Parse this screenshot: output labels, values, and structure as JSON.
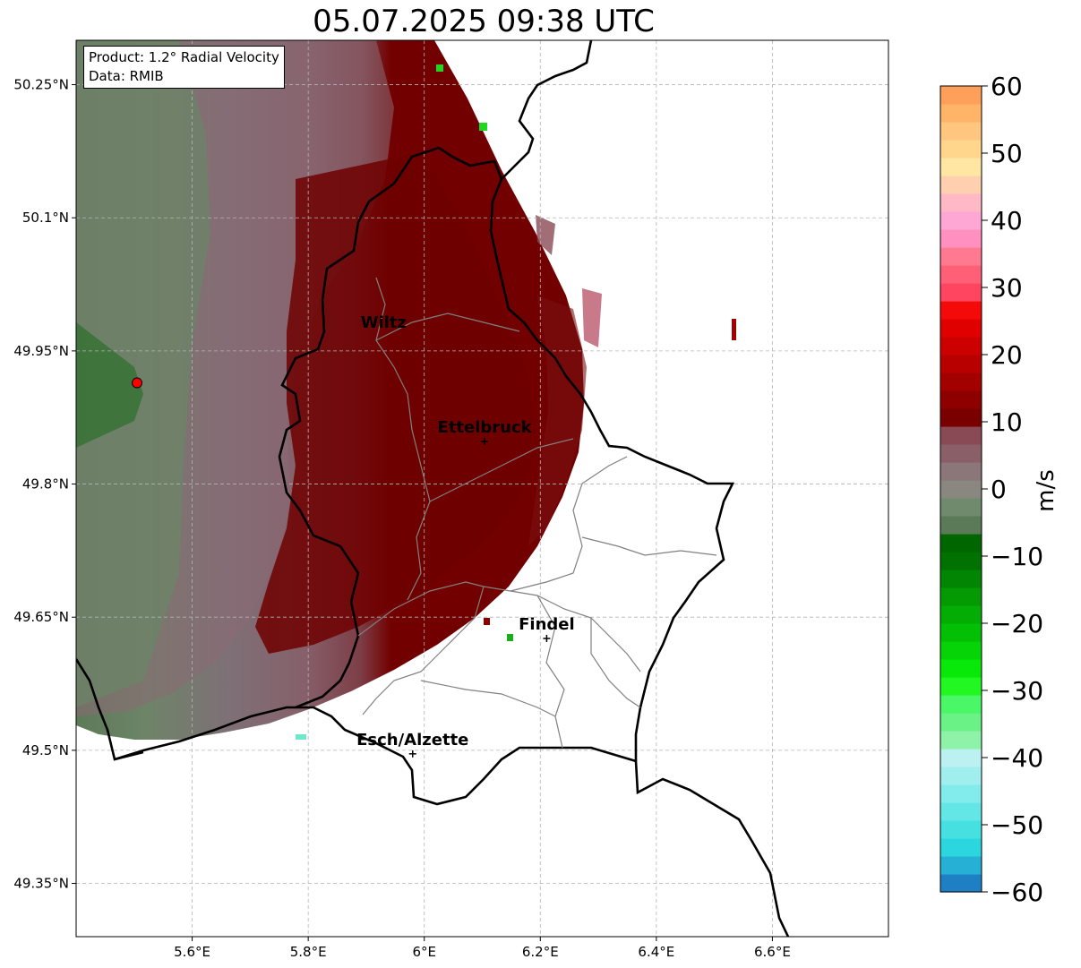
{
  "title": "05.07.2025 09:38 UTC",
  "info": {
    "product": "Product: 1.2° Radial Velocity",
    "data_source": "Data: RMIB"
  },
  "map": {
    "projection": "lat-lon",
    "lon_range": [
      5.4,
      6.8
    ],
    "lat_range": [
      49.29,
      50.3
    ],
    "x_ticks": [
      "5.6°E",
      "5.8°E",
      "6°E",
      "6.2°E",
      "6.4°E",
      "6.6°E"
    ],
    "y_ticks": [
      "50.25°N",
      "50.1°N",
      "49.95°N",
      "49.8°N",
      "49.65°N",
      "49.5°N",
      "49.35°N"
    ],
    "gridlines": "dashed",
    "radar_site": {
      "lon": 5.505,
      "lat": 49.914,
      "color": "#ff0000"
    },
    "cities": [
      {
        "name": "Wiltz",
        "lon": 5.93,
        "lat": 49.966,
        "marker": false
      },
      {
        "name": "Ettelbruck",
        "lon": 6.104,
        "lat": 49.848,
        "marker": true
      },
      {
        "name": "Findel",
        "lon": 6.211,
        "lat": 49.626,
        "marker": true
      },
      {
        "name": "Esch/Alzette",
        "lon": 5.98,
        "lat": 49.496,
        "marker": true
      }
    ]
  },
  "colorbar": {
    "label": "m/s",
    "range": [
      -60,
      60
    ],
    "ticks": [
      "60",
      "50",
      "40",
      "30",
      "20",
      "10",
      "0",
      "−10",
      "−20",
      "−30",
      "−40",
      "−50",
      "−60"
    ],
    "colors": [
      "#1f7fc4",
      "#26b0d6",
      "#2cd6de",
      "#46e0e0",
      "#64e6e6",
      "#82ebeb",
      "#a0eeee",
      "#bcf1f1",
      "#8ef2a8",
      "#6af287",
      "#4af766",
      "#22f722",
      "#09e909",
      "#06d406",
      "#04c004",
      "#03ad03",
      "#039a03",
      "#028502",
      "#017201",
      "#006600",
      "#5a7a58",
      "#6f8a6c",
      "#8a8680",
      "#8b767a",
      "#8b5f68",
      "#8a4a55",
      "#7a0000",
      "#8e0000",
      "#a30000",
      "#b80000",
      "#cd0000",
      "#e00000",
      "#f50a0a",
      "#ff4560",
      "#ff6078",
      "#ff7a90",
      "#ff90bf",
      "#ffa7d4",
      "#ffb8c6",
      "#ffd0b0",
      "#ffe6a2",
      "#ffd68c",
      "#ffc680",
      "#ffb468",
      "#ffa05a"
    ]
  }
}
